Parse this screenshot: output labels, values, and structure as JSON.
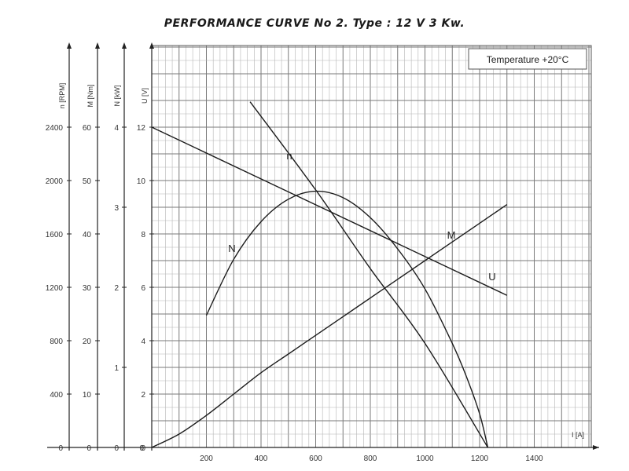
{
  "title": "PERFORMANCE CURVE No 2.  Type : 12 V  3 Kw.",
  "chart_data": {
    "type": "line",
    "annotation": "Temperature  +20°C",
    "grid": true,
    "x_axis": {
      "label": "I [A]",
      "range": [
        0,
        1500
      ],
      "ticks": [
        200,
        400,
        600,
        800,
        1000,
        1200,
        1400
      ],
      "origin_label": "0"
    },
    "y_axes": [
      {
        "key": "n",
        "label": "n [RPM]",
        "range": [
          0,
          2800
        ],
        "ticks": [
          0,
          400,
          800,
          1200,
          1600,
          2000,
          2400
        ]
      },
      {
        "key": "M",
        "label": "M [Nm]",
        "range": [
          0,
          70
        ],
        "ticks": [
          0,
          10,
          20,
          30,
          40,
          50,
          60
        ]
      },
      {
        "key": "N",
        "label": "N [kW]",
        "range": [
          0,
          4.67
        ],
        "ticks": [
          0,
          1,
          2,
          3,
          4
        ]
      },
      {
        "key": "U",
        "label": "U [V]",
        "range": [
          0,
          14
        ],
        "ticks": [
          0,
          2,
          4,
          6,
          8,
          10,
          12
        ]
      }
    ],
    "series": [
      {
        "name": "U",
        "axis": "U",
        "x": [
          0,
          1300
        ],
        "y": [
          12,
          5.7
        ]
      },
      {
        "name": "n",
        "axis": "n",
        "x": [
          360,
          600,
          800,
          1000,
          1230
        ],
        "y": [
          2590,
          1930,
          1340,
          780,
          0
        ]
      },
      {
        "name": "M",
        "axis": "M",
        "x": [
          0,
          100,
          200,
          300,
          400,
          500,
          600,
          700,
          800,
          900,
          1000,
          1100,
          1200,
          1300
        ],
        "y": [
          0,
          2.5,
          6.0,
          10.0,
          14.0,
          17.5,
          21.0,
          24.5,
          28.0,
          31.5,
          35.0,
          38.5,
          42.0,
          45.5
        ]
      },
      {
        "name": "N",
        "axis": "N",
        "x": [
          200,
          300,
          400,
          500,
          600,
          700,
          800,
          900,
          1000,
          1100,
          1150,
          1200,
          1230
        ],
        "y": [
          1.65,
          2.35,
          2.82,
          3.1,
          3.2,
          3.12,
          2.87,
          2.48,
          1.98,
          1.3,
          0.9,
          0.42,
          0
        ]
      }
    ]
  }
}
